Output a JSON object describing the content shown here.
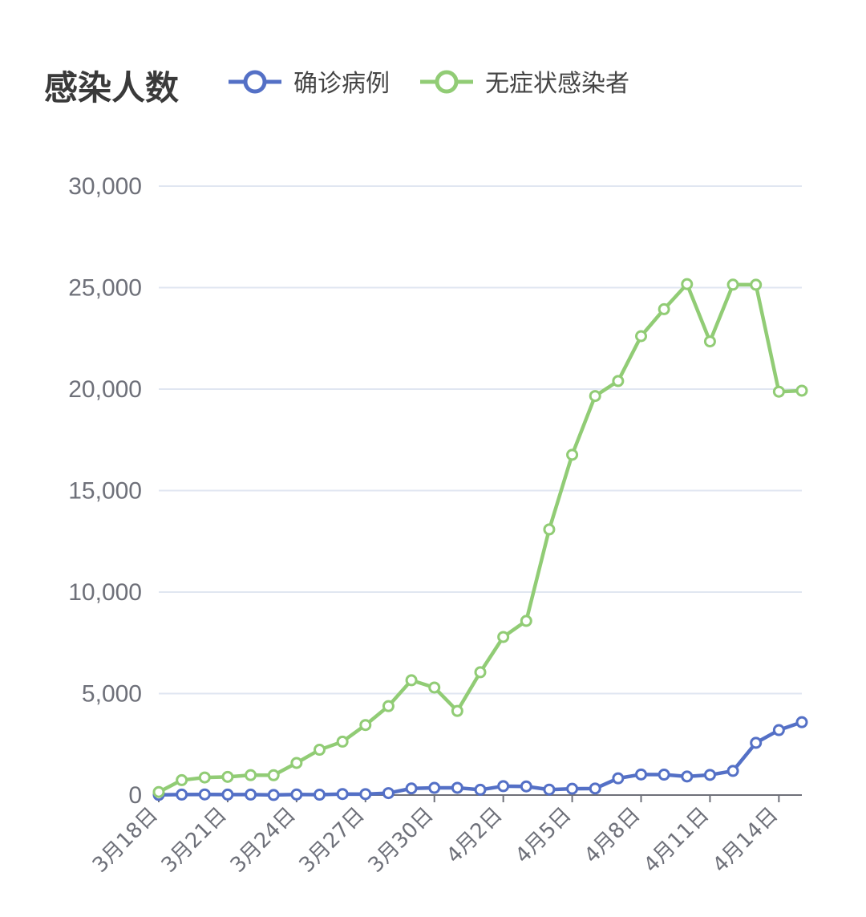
{
  "chart_data": {
    "type": "line",
    "title": "感染人数",
    "legend_position": "top",
    "grid": true,
    "ylim": [
      0,
      30000
    ],
    "y_ticks": [
      "0",
      "5,000",
      "10,000",
      "15,000",
      "20,000",
      "25,000",
      "30,000"
    ],
    "x_tick_labels": [
      "3月18日",
      "3月21日",
      "3月24日",
      "3月27日",
      "3月30日",
      "4月2日",
      "4月5日",
      "4月8日",
      "4月11日",
      "4月14日"
    ],
    "x": [
      "3月18日",
      "3月19日",
      "3月20日",
      "3月21日",
      "3月22日",
      "3月23日",
      "3月24日",
      "3月25日",
      "3月26日",
      "3月27日",
      "3月28日",
      "3月29日",
      "3月30日",
      "3月31日",
      "4月1日",
      "4月2日",
      "4月3日",
      "4月4日",
      "4月5日",
      "4月6日",
      "4月7日",
      "4月8日",
      "4月9日",
      "4月10日",
      "4月11日",
      "4月12日",
      "4月13日",
      "4月14日",
      "4月15日"
    ],
    "series": [
      {
        "name": "确诊病例",
        "color": "#5470c6",
        "values": [
          8,
          24,
          31,
          24,
          24,
          4,
          29,
          19,
          50,
          45,
          96,
          326,
          355,
          358,
          260,
          438,
          425,
          268,
          311,
          322,
          824,
          1015,
          1006,
          914,
          994,
          1189,
          2573,
          3200,
          3590
        ]
      },
      {
        "name": "无症状感染者",
        "color": "#91cc75",
        "values": [
          150,
          734,
          865,
          896,
          981,
          977,
          1582,
          2231,
          2631,
          3450,
          4381,
          5656,
          5298,
          4144,
          6051,
          7788,
          8581,
          13086,
          16766,
          19660,
          20398,
          22609,
          23937,
          25173,
          22348,
          25146,
          25141,
          19872,
          19923
        ]
      }
    ]
  }
}
